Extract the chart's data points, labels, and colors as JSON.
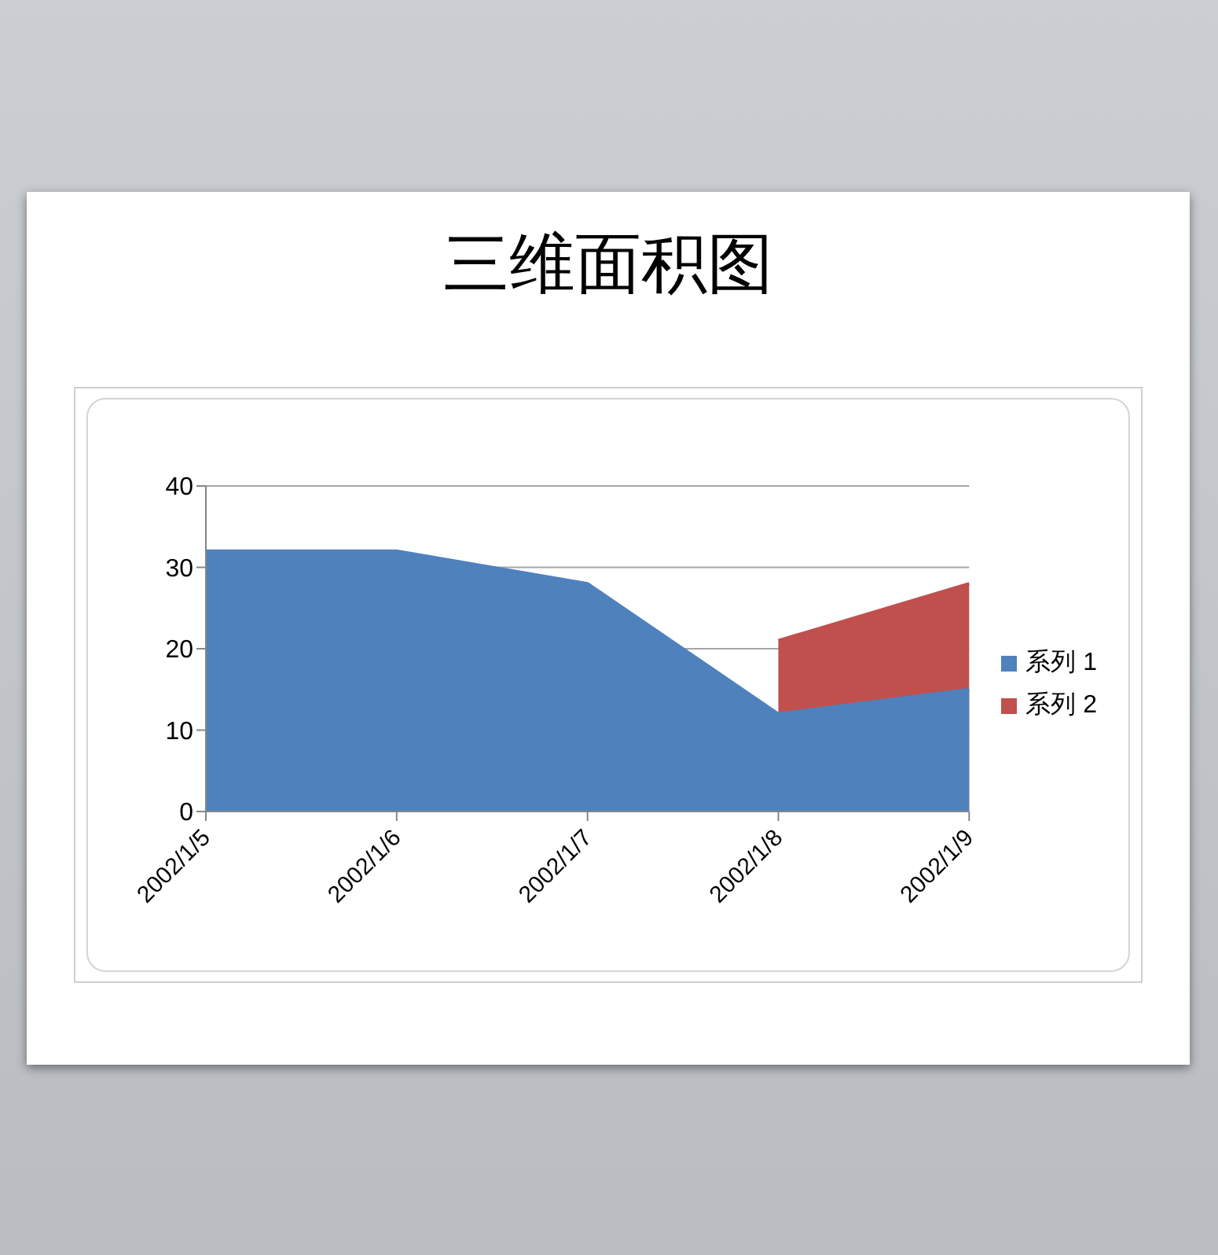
{
  "chart_data": {
    "type": "area",
    "title": "三维面积图",
    "categories": [
      "2002/1/5",
      "2002/1/6",
      "2002/1/7",
      "2002/1/8",
      "2002/1/9"
    ],
    "series": [
      {
        "name": "系列 1",
        "color": "#4f81bd",
        "values": [
          32,
          32,
          28,
          12,
          15
        ]
      },
      {
        "name": "系列 2",
        "color": "#c0504d",
        "values": [
          null,
          null,
          null,
          21,
          28
        ]
      }
    ],
    "ylim": [
      0,
      40
    ],
    "yticks": [
      0,
      10,
      20,
      30,
      40
    ],
    "grid": "y",
    "legend": "right"
  }
}
